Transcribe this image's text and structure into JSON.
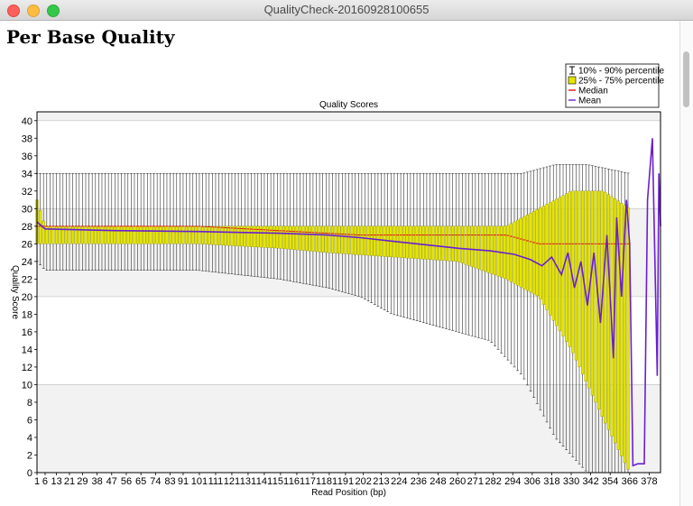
{
  "window": {
    "title": "QualityCheck-20160928100655"
  },
  "page": {
    "title": "Per Base Quality"
  },
  "colors": {
    "box": "#e5e500",
    "whisker": "#333333",
    "median": "#e01010",
    "mean": "#6a1fd1",
    "grid": "#cccccc",
    "band": "#f2f2f2"
  },
  "chart_data": {
    "type": "box",
    "title": "Quality Scores",
    "xlabel": "Read Position (bp)",
    "ylabel": "Quality Score",
    "ylim": [
      0,
      41
    ],
    "xlim": [
      1,
      385
    ],
    "y_ticks": [
      0,
      2,
      4,
      6,
      8,
      10,
      12,
      14,
      16,
      18,
      20,
      22,
      24,
      26,
      28,
      30,
      32,
      34,
      36,
      38,
      40
    ],
    "x_tick_labels": [
      "1",
      "6",
      "13",
      "21",
      "29",
      "38",
      "47",
      "56",
      "65",
      "74",
      "83",
      "91",
      "101",
      "111",
      "121",
      "131",
      "141",
      "151",
      "161",
      "171",
      "181",
      "191",
      "202",
      "213",
      "224",
      "236",
      "248",
      "260",
      "271",
      "282",
      "294",
      "306",
      "318",
      "330",
      "342",
      "354",
      "366",
      "378"
    ],
    "legend": {
      "position": "top-right",
      "entries": [
        {
          "label": "10% - 90% percentile",
          "kind": "whisker"
        },
        {
          "label": "25% - 75% percentile",
          "kind": "box"
        },
        {
          "label": "Median",
          "kind": "median"
        },
        {
          "label": "Mean",
          "kind": "mean"
        }
      ]
    },
    "grid": "horizontal at 10, 20, 30, 40",
    "series": [
      {
        "name": "10% - 90% percentile",
        "points": [
          {
            "x": 1,
            "low": 24,
            "high": 34
          },
          {
            "x": 6,
            "low": 23,
            "high": 34
          },
          {
            "x": 50,
            "low": 23,
            "high": 34
          },
          {
            "x": 100,
            "low": 23,
            "high": 34
          },
          {
            "x": 150,
            "low": 22,
            "high": 34
          },
          {
            "x": 180,
            "low": 21,
            "high": 34
          },
          {
            "x": 200,
            "low": 20,
            "high": 34
          },
          {
            "x": 220,
            "low": 18,
            "high": 34
          },
          {
            "x": 240,
            "low": 17,
            "high": 34
          },
          {
            "x": 260,
            "low": 16,
            "high": 34
          },
          {
            "x": 280,
            "low": 15,
            "high": 34
          },
          {
            "x": 300,
            "low": 11,
            "high": 34
          },
          {
            "x": 320,
            "low": 4,
            "high": 35
          },
          {
            "x": 340,
            "low": 0,
            "high": 35
          },
          {
            "x": 366,
            "low": 0,
            "high": 34
          }
        ]
      },
      {
        "name": "25% - 75% percentile",
        "points": [
          {
            "x": 1,
            "low": 26,
            "high": 31
          },
          {
            "x": 6,
            "low": 26,
            "high": 28
          },
          {
            "x": 100,
            "low": 26,
            "high": 28
          },
          {
            "x": 150,
            "low": 25.5,
            "high": 28
          },
          {
            "x": 180,
            "low": 25,
            "high": 28
          },
          {
            "x": 220,
            "low": 24.5,
            "high": 28
          },
          {
            "x": 260,
            "low": 24,
            "high": 28
          },
          {
            "x": 290,
            "low": 22,
            "high": 28
          },
          {
            "x": 310,
            "low": 20,
            "high": 30
          },
          {
            "x": 330,
            "low": 14,
            "high": 32
          },
          {
            "x": 350,
            "low": 6,
            "high": 32
          },
          {
            "x": 366,
            "low": 0,
            "high": 30
          }
        ]
      },
      {
        "name": "Median",
        "points": [
          {
            "x": 1,
            "y": 28
          },
          {
            "x": 100,
            "y": 28
          },
          {
            "x": 200,
            "y": 27
          },
          {
            "x": 290,
            "y": 27
          },
          {
            "x": 310,
            "y": 26
          },
          {
            "x": 366,
            "y": 26
          }
        ]
      },
      {
        "name": "Mean",
        "points": [
          {
            "x": 1,
            "y": 28.5
          },
          {
            "x": 6,
            "y": 27.7
          },
          {
            "x": 50,
            "y": 27.5
          },
          {
            "x": 100,
            "y": 27.4
          },
          {
            "x": 150,
            "y": 27.2
          },
          {
            "x": 180,
            "y": 27.0
          },
          {
            "x": 200,
            "y": 26.7
          },
          {
            "x": 220,
            "y": 26.3
          },
          {
            "x": 240,
            "y": 25.9
          },
          {
            "x": 260,
            "y": 25.5
          },
          {
            "x": 280,
            "y": 25.2
          },
          {
            "x": 295,
            "y": 24.8
          },
          {
            "x": 305,
            "y": 24.2
          },
          {
            "x": 312,
            "y": 23.5
          },
          {
            "x": 318,
            "y": 24.5
          },
          {
            "x": 324,
            "y": 22.5
          },
          {
            "x": 328,
            "y": 25
          },
          {
            "x": 332,
            "y": 21
          },
          {
            "x": 336,
            "y": 24
          },
          {
            "x": 340,
            "y": 19
          },
          {
            "x": 344,
            "y": 25
          },
          {
            "x": 348,
            "y": 17
          },
          {
            "x": 352,
            "y": 27
          },
          {
            "x": 356,
            "y": 13
          },
          {
            "x": 358,
            "y": 29
          },
          {
            "x": 361,
            "y": 20
          },
          {
            "x": 364,
            "y": 31
          },
          {
            "x": 366,
            "y": 26
          },
          {
            "x": 368,
            "y": 0.8
          },
          {
            "x": 371,
            "y": 1
          },
          {
            "x": 375,
            "y": 1
          },
          {
            "x": 377,
            "y": 31
          },
          {
            "x": 380,
            "y": 38
          },
          {
            "x": 383,
            "y": 11
          },
          {
            "x": 384,
            "y": 34
          },
          {
            "x": 385,
            "y": 28
          }
        ]
      }
    ]
  }
}
